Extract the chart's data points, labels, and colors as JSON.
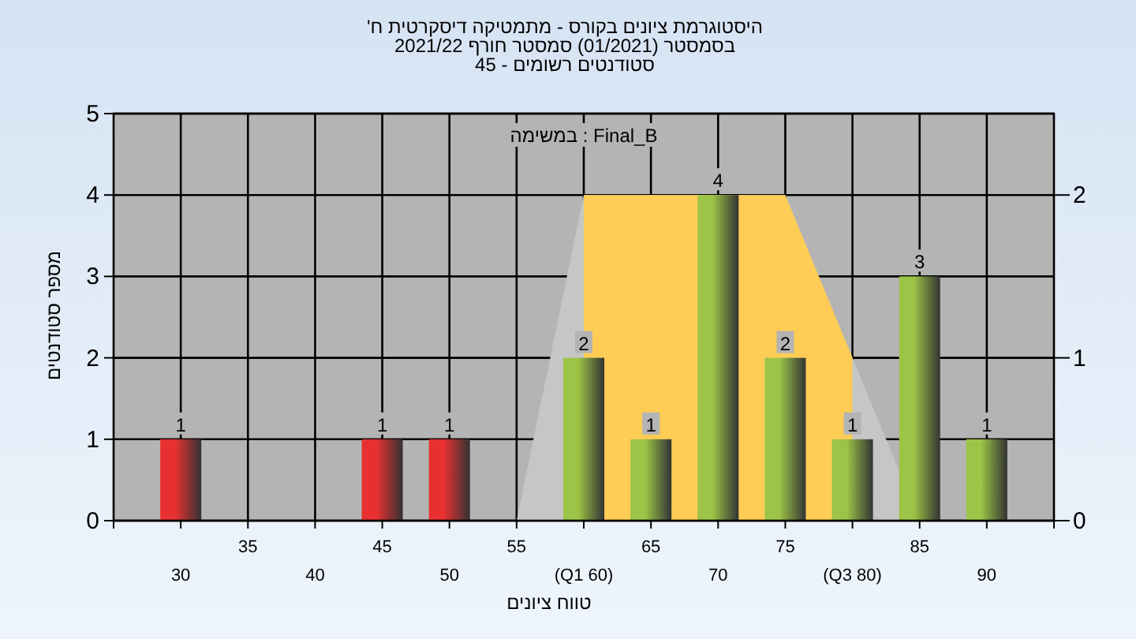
{
  "chart_data": {
    "type": "bar",
    "title": "היסטוגרמת ציונים בקורס - מתמטיקה דיסקרטית ח'",
    "subtitle": "בסמסטר  (01/2021)  סמסטר חורף 2021/22\nסטודנטים רשומים - 45",
    "xlabel": "טווח ציונים",
    "ylabel": "מספר סטודנטים",
    "annotations": [
      "במשימה : Final_B"
    ],
    "categories": [
      "30",
      "35",
      "40",
      "45",
      "50",
      "55",
      "(Q1 60)",
      "65",
      "70",
      "75",
      "(Q3 80)",
      "85",
      "90"
    ],
    "ylim": [
      0,
      5
    ],
    "yticks": [
      0,
      1,
      2,
      3,
      4,
      5
    ],
    "y2lim": [
      0,
      2.5
    ],
    "y2ticks": [
      0,
      1,
      2
    ],
    "grid": true,
    "series": [
      {
        "type": "area",
        "axis": "y2",
        "color": "#c6c6c6",
        "values": [
          null,
          null,
          null,
          null,
          null,
          0,
          2,
          2,
          2,
          2,
          1,
          0,
          null
        ]
      },
      {
        "type": "area",
        "axis": "y2",
        "color": "#ffcc55",
        "values": [
          null,
          null,
          null,
          null,
          null,
          null,
          2,
          2,
          2,
          2,
          1,
          null,
          null
        ]
      },
      {
        "colors": [
          "#e83030",
          "#e83030",
          "#e83030",
          "#e83030",
          "#e83030",
          "#e83030",
          "#9cc447",
          "#9cc447",
          "#9cc447",
          "#9cc447",
          "#9cc447",
          "#9cc447",
          "#9cc447"
        ],
        "values": [
          1,
          0,
          0,
          1,
          1,
          0,
          2,
          1,
          4,
          2,
          1,
          3,
          1
        ],
        "value_labels": [
          "1",
          null,
          null,
          "1",
          "1",
          null,
          "2",
          "1",
          "4",
          "2",
          "1",
          "3",
          "1"
        ]
      }
    ]
  }
}
